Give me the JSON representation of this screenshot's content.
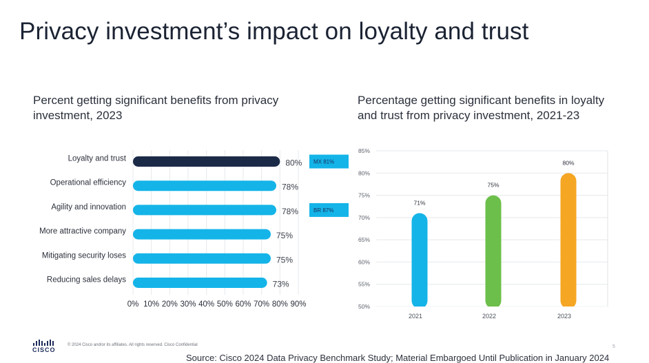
{
  "slide": {
    "title": "Privacy investment’s impact on loyalty and trust",
    "footer": {
      "logo_text": "CISCO",
      "copyright": "© 2024  Cisco and/or its affiliates. All rights reserved.   Cisco Confidential",
      "page_number": "5",
      "source": "Source: Cisco 2024 Data Privacy Benchmark Study; Material Embargoed Until Publication in January 2024"
    }
  },
  "chart_data": [
    {
      "type": "bar",
      "orientation": "horizontal",
      "title": "Percent getting significant benefits from privacy investment, 2023",
      "categories": [
        "Loyalty and trust",
        "Operational efficiency",
        "Agility and innovation",
        "More attractive company",
        "Mitigating security loses",
        "Reducing sales delays"
      ],
      "values": [
        80,
        78,
        78,
        75,
        75,
        73
      ],
      "value_labels": [
        "80%",
        "78%",
        "78%",
        "75%",
        "75%",
        "73%"
      ],
      "xlim": [
        0,
        90
      ],
      "xticks": [
        "0%",
        "10%",
        "20%",
        "30%",
        "40%",
        "50%",
        "60%",
        "70%",
        "80%",
        "90%"
      ],
      "grid": true,
      "colors": {
        "highlight": "#1b2a47",
        "bar": "#14b4e8"
      },
      "annotations": [
        {
          "category": "Loyalty and trust",
          "text": "MX 81%"
        },
        {
          "category": "Agility and innovation",
          "text": "BR 87%"
        }
      ]
    },
    {
      "type": "bar",
      "orientation": "vertical",
      "title": "Percentage getting significant benefits in loyalty and trust from privacy investment, 2021-23",
      "categories": [
        "2021",
        "2022",
        "2023"
      ],
      "values": [
        71,
        75,
        80
      ],
      "value_labels": [
        "71%",
        "75%",
        "80%"
      ],
      "ylim": [
        50,
        85
      ],
      "yticks": [
        "50%",
        "55%",
        "60%",
        "65%",
        "70%",
        "75%",
        "80%",
        "85%"
      ],
      "grid": true,
      "colors": [
        "#14b4e8",
        "#6cbf4a",
        "#f5a623"
      ]
    }
  ]
}
